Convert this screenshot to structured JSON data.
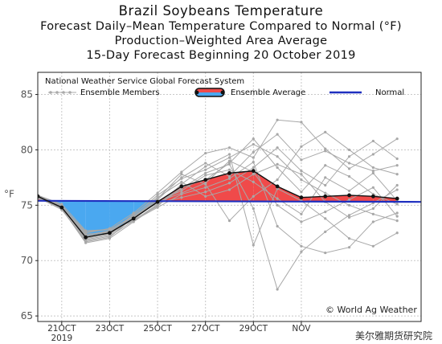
{
  "titles": {
    "line1": "Brazil Soybeans Temperature",
    "line2": "Forecast Daily–Mean Temperature Compared to Normal (°F)",
    "line3": "Production–Weighted Area Average",
    "line4": "15-Day Forecast Beginning 20 October 2019"
  },
  "source_label": "National Weather Service Global Forecast System",
  "copyright": "© World Ag Weather",
  "watermark": "美尔雅期货研究院",
  "chart_data": {
    "type": "line",
    "title": "Brazil Soybeans Temperature",
    "ylabel": "°F",
    "ylim": [
      64.5,
      87
    ],
    "yticks": [
      65,
      70,
      75,
      80,
      85
    ],
    "xlim": [
      0,
      16
    ],
    "x_tick_positions": [
      1,
      3,
      5,
      7,
      9,
      11
    ],
    "x_tick_labels": [
      "21OCT",
      "23OCT",
      "25OCT",
      "27OCT",
      "29OCT",
      "NOV"
    ],
    "x_sub_label": "2019",
    "grid": true,
    "legend": [
      {
        "name": "Ensemble Members",
        "style": "gray-dots"
      },
      {
        "name": "Ensemble Average",
        "style": "black-red-blue"
      },
      {
        "name": "Normal",
        "style": "blue-line"
      }
    ],
    "colors": {
      "above_normal_fill": "#f04a4a",
      "below_normal_fill": "#4aa8f0",
      "normal_line": "#1f2fbf",
      "average_line": "#111111",
      "member": "#a8a8a8"
    },
    "normal": {
      "x": [
        0,
        16
      ],
      "y": [
        75.4,
        75.3
      ]
    },
    "ensemble_average": {
      "x": [
        0,
        1,
        2,
        3,
        4,
        5,
        6,
        7,
        8,
        9,
        10,
        11,
        12,
        13,
        14,
        15
      ],
      "y": [
        75.8,
        74.8,
        72.1,
        72.5,
        73.8,
        75.3,
        76.7,
        77.3,
        77.9,
        78.1,
        76.7,
        75.7,
        75.8,
        75.9,
        75.8,
        75.6
      ]
    },
    "ensemble_members": [
      {
        "y": [
          75.8,
          75.0,
          72.3,
          72.7,
          74.1,
          75.9,
          77.4,
          78.2,
          79.3,
          80.5,
          79.4,
          77.3,
          76.1,
          75.0,
          74.2,
          73.6
        ]
      },
      {
        "y": [
          75.9,
          74.6,
          71.8,
          72.2,
          73.6,
          74.8,
          76.0,
          76.6,
          77.4,
          78.9,
          73.1,
          71.3,
          70.7,
          71.2,
          73.5,
          74.3
        ]
      },
      {
        "y": [
          75.7,
          74.9,
          72.5,
          72.9,
          74.3,
          76.1,
          78.0,
          79.7,
          80.2,
          79.3,
          82.7,
          82.5,
          80.1,
          78.3,
          79.6,
          81.0
        ]
      },
      {
        "y": [
          75.8,
          74.7,
          71.6,
          72.0,
          73.5,
          75.0,
          76.5,
          77.9,
          78.7,
          74.7,
          67.4,
          70.8,
          72.6,
          74.1,
          75.2,
          76.4
        ]
      },
      {
        "y": [
          75.6,
          74.8,
          72.0,
          72.4,
          74.0,
          75.6,
          77.8,
          76.9,
          73.6,
          75.8,
          77.3,
          80.3,
          81.6,
          80.0,
          78.4,
          77.8
        ]
      },
      {
        "y": [
          75.9,
          75.1,
          72.7,
          72.8,
          73.9,
          75.2,
          75.7,
          76.2,
          77.0,
          78.4,
          80.2,
          78.1,
          76.8,
          79.4,
          80.8,
          79.2
        ]
      },
      {
        "y": [
          75.8,
          74.9,
          72.2,
          72.6,
          73.7,
          74.9,
          76.9,
          78.5,
          79.6,
          71.4,
          76.5,
          75.4,
          73.8,
          72.0,
          71.3,
          72.5
        ]
      },
      {
        "y": [
          75.7,
          74.6,
          71.9,
          72.3,
          73.8,
          75.4,
          76.3,
          77.7,
          78.2,
          77.1,
          75.6,
          74.2,
          77.5,
          76.3,
          77.9,
          75.4
        ]
      },
      {
        "y": [
          75.8,
          74.8,
          72.4,
          72.5,
          74.2,
          75.7,
          77.1,
          75.8,
          76.4,
          77.8,
          78.7,
          77.8,
          75.3,
          73.9,
          74.7,
          76.8
        ]
      },
      {
        "y": [
          75.9,
          75.0,
          72.1,
          72.7,
          73.6,
          75.1,
          76.6,
          77.3,
          78.8,
          81.0,
          78.4,
          76.2,
          78.6,
          77.6,
          76.0,
          75.1
        ]
      },
      {
        "y": [
          75.7,
          74.7,
          71.7,
          72.1,
          73.9,
          75.5,
          77.5,
          78.8,
          77.6,
          79.8,
          81.4,
          79.1,
          79.9,
          78.8,
          78.1,
          78.6
        ]
      },
      {
        "y": [
          75.8,
          74.9,
          72.6,
          72.8,
          74.0,
          75.3,
          76.1,
          77.0,
          79.0,
          78.0,
          75.0,
          73.5,
          74.4,
          75.5,
          76.6,
          74.0
        ]
      }
    ]
  }
}
